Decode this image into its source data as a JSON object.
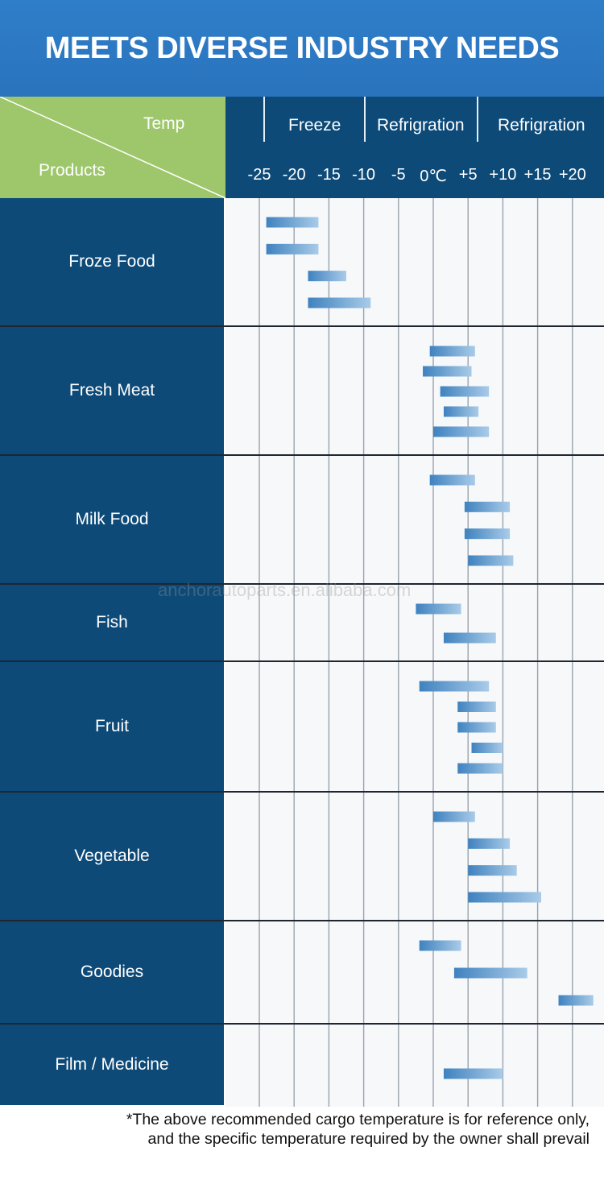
{
  "banner": {
    "title": "MEETS DIVERSE INDUSTRY NEEDS"
  },
  "corner": {
    "temp_label": "Temp",
    "products_label": "Products"
  },
  "zones": [
    {
      "label": "Freeze"
    },
    {
      "label": "Refrigration"
    },
    {
      "label": "Refrigration"
    }
  ],
  "watermark": "anchorautoparts.en.alibaba.com",
  "colors": {
    "header_bg": "#2f7ec9",
    "label_bg": "#0d4a78",
    "corner_bg": "#9dc76a",
    "bar": "#4f8ec6"
  },
  "chart_data": {
    "type": "bar",
    "orientation": "horizontal-range",
    "x_ticks": [
      "-25",
      "-20",
      "-15",
      "-10",
      "-5",
      "0℃",
      "+5",
      "+10",
      "+15",
      "+20"
    ],
    "x_values": [
      -25,
      -20,
      -15,
      -10,
      -5,
      0,
      5,
      10,
      15,
      20
    ],
    "categories": [
      {
        "name": "Froze Food",
        "bars": [
          [
            -24,
            -16.5
          ],
          [
            -24,
            -16.5
          ],
          [
            -18,
            -12.5
          ],
          [
            -18,
            -9
          ]
        ]
      },
      {
        "name": "Fresh Meat",
        "bars": [
          [
            -0.5,
            6
          ],
          [
            -1.5,
            5.5
          ],
          [
            1,
            8
          ],
          [
            1.5,
            6.5
          ],
          [
            0,
            8
          ]
        ]
      },
      {
        "name": "Milk Food",
        "bars": [
          [
            -0.5,
            6
          ],
          [
            4.5,
            11
          ],
          [
            4.5,
            11
          ],
          [
            5,
            11.5
          ]
        ]
      },
      {
        "name": "Fish",
        "bars": [
          [
            -2.5,
            4
          ],
          [
            1.5,
            9
          ]
        ]
      },
      {
        "name": "Fruit",
        "bars": [
          [
            -2,
            8
          ],
          [
            3.5,
            9
          ],
          [
            3.5,
            9
          ],
          [
            5.5,
            10
          ],
          [
            3.5,
            10
          ]
        ]
      },
      {
        "name": "Vegetable",
        "bars": [
          [
            0,
            6
          ],
          [
            5,
            11
          ],
          [
            5,
            12
          ],
          [
            5,
            15.5
          ]
        ]
      },
      {
        "name": "Goodies",
        "bars": [
          [
            -2,
            4
          ],
          [
            3,
            13.5
          ],
          [
            18,
            23
          ]
        ]
      },
      {
        "name": "Film / Medicine",
        "bars": [
          [
            1.5,
            10
          ]
        ]
      }
    ]
  },
  "footnote": {
    "line1": "*The above recommended cargo temperature is for reference only,",
    "line2": "and the specific temperature required by the owner shall prevail"
  }
}
